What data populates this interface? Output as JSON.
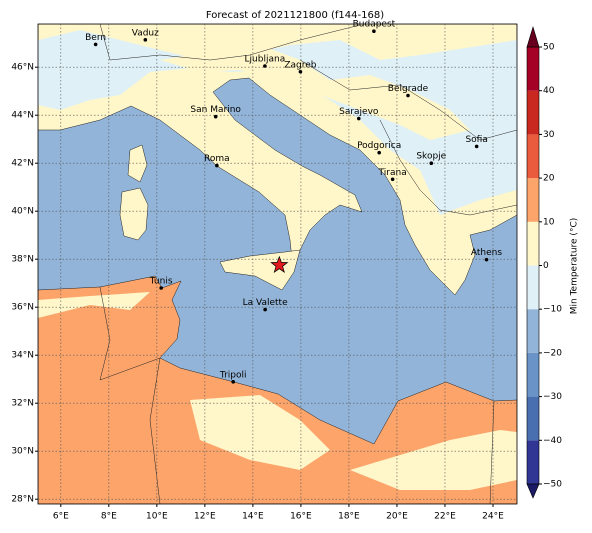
{
  "title": "Forecast of 2021121800 (f144-168)",
  "map": {
    "type": "map",
    "xlim": [
      5.05,
      25
    ],
    "ylim": [
      27.8,
      47.8
    ],
    "grid": true,
    "xticks": [
      {
        "value": 6,
        "label": "6°E"
      },
      {
        "value": 8,
        "label": "8°E"
      },
      {
        "value": 10,
        "label": "10°E"
      },
      {
        "value": 12,
        "label": "12°E"
      },
      {
        "value": 14,
        "label": "14°E"
      },
      {
        "value": 16,
        "label": "16°E"
      },
      {
        "value": 18,
        "label": "18°E"
      },
      {
        "value": 20,
        "label": "20°E"
      },
      {
        "value": 22,
        "label": "22°E"
      },
      {
        "value": 24,
        "label": "24°E"
      }
    ],
    "yticks": [
      {
        "value": 28,
        "label": "28°N"
      },
      {
        "value": 30,
        "label": "30°N"
      },
      {
        "value": 32,
        "label": "32°N"
      },
      {
        "value": 34,
        "label": "34°N"
      },
      {
        "value": 36,
        "label": "36°N"
      },
      {
        "value": 38,
        "label": "38°N"
      },
      {
        "value": 40,
        "label": "40°N"
      },
      {
        "value": 42,
        "label": "42°N"
      },
      {
        "value": 44,
        "label": "44°N"
      },
      {
        "value": 46,
        "label": "46°N"
      }
    ],
    "cities": [
      {
        "name": "Bern",
        "lon": 7.45,
        "lat": 46.95
      },
      {
        "name": "Vaduz",
        "lon": 9.52,
        "lat": 47.14
      },
      {
        "name": "Budapest",
        "lon": 19.04,
        "lat": 47.5
      },
      {
        "name": "Ljubljana",
        "lon": 14.5,
        "lat": 46.05
      },
      {
        "name": "Zagreb",
        "lon": 15.98,
        "lat": 45.81
      },
      {
        "name": "Belgrade",
        "lon": 20.46,
        "lat": 44.82
      },
      {
        "name": "San Marino",
        "lon": 12.45,
        "lat": 43.94
      },
      {
        "name": "Sarajevo",
        "lon": 18.41,
        "lat": 43.86
      },
      {
        "name": "Sofia",
        "lon": 23.32,
        "lat": 42.7
      },
      {
        "name": "Podgorica",
        "lon": 19.26,
        "lat": 42.44
      },
      {
        "name": "Skopje",
        "lon": 21.43,
        "lat": 42.0
      },
      {
        "name": "Roma",
        "lon": 12.5,
        "lat": 41.9
      },
      {
        "name": "Tirana",
        "lon": 19.82,
        "lat": 41.33
      },
      {
        "name": "Athens",
        "lon": 23.73,
        "lat": 37.98
      },
      {
        "name": "Tunis",
        "lon": 10.18,
        "lat": 36.8
      },
      {
        "name": "La Valette",
        "lon": 14.51,
        "lat": 35.9
      },
      {
        "name": "Tripoli",
        "lon": 13.18,
        "lat": 32.89
      }
    ],
    "marker": {
      "lon": 15.1,
      "lat": 37.75,
      "color": "#e31a1c"
    }
  },
  "colorbar": {
    "label": "Min Temperature (°C)",
    "lim": [
      -50,
      50
    ],
    "ticks": [
      {
        "value": -50,
        "label": "−50"
      },
      {
        "value": -40,
        "label": "−40"
      },
      {
        "value": -30,
        "label": "−30"
      },
      {
        "value": -20,
        "label": "−20"
      },
      {
        "value": -10,
        "label": "−10"
      },
      0,
      10,
      20,
      30,
      40,
      50
    ],
    "colors": [
      "#313695",
      "#4a6fb0",
      "#6a94c8",
      "#92b4d8",
      "#dff1f7",
      "#fff6c9",
      "#fca46a",
      "#ea5a3c",
      "#c8281f",
      "#a50026"
    ],
    "under": "#1a1a66",
    "over": "#67001f"
  }
}
